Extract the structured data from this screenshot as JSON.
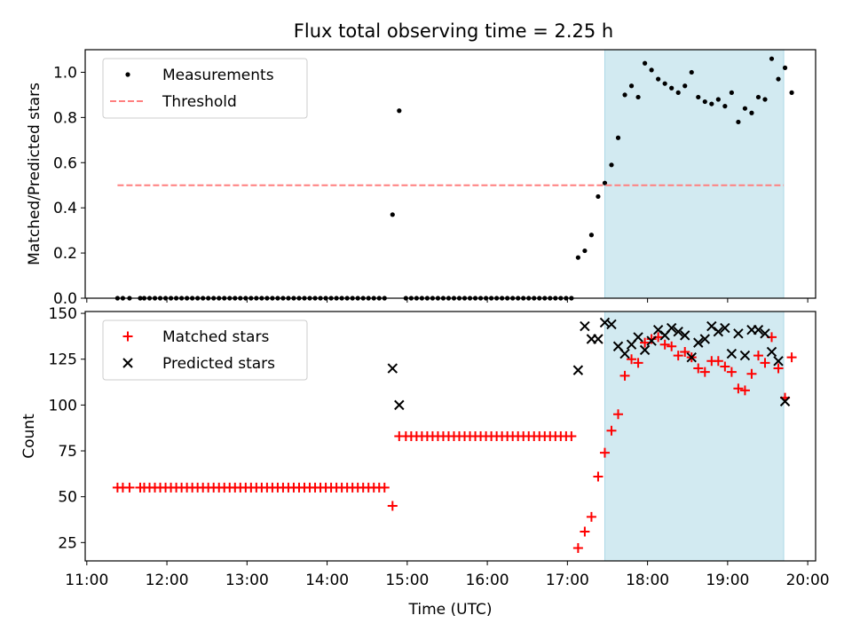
{
  "title": "Flux total observing time = 2.25 h",
  "colors": {
    "measurement": "#000000",
    "threshold": "#ff7f7f",
    "matched": "#ff0000",
    "predicted": "#000000",
    "highlight": "#add8e6"
  },
  "chart_data": [
    {
      "type": "scatter",
      "ylabel": "Matched/Predicted stars",
      "xlabel": "",
      "xlim": [
        "11:00",
        "20:00"
      ],
      "ylim": [
        0,
        1.1
      ],
      "yticks": [
        "0.0",
        "0.2",
        "0.4",
        "0.6",
        "0.8",
        "1.0"
      ],
      "legend_position": "top-left",
      "highlight_span": [
        "17:28",
        "19:42"
      ],
      "series": [
        {
          "name": "Measurements",
          "marker": "dot",
          "x": [
            "11:23",
            "11:27",
            "11:32",
            "11:40",
            "11:43",
            "11:47",
            "11:51",
            "11:55",
            "11:59",
            "12:03",
            "12:07",
            "12:11",
            "12:15",
            "12:19",
            "12:23",
            "12:27",
            "12:31",
            "12:35",
            "12:39",
            "12:43",
            "12:47",
            "12:51",
            "12:55",
            "12:59",
            "13:03",
            "13:07",
            "13:11",
            "13:15",
            "13:19",
            "13:23",
            "13:27",
            "13:31",
            "13:35",
            "13:39",
            "13:43",
            "13:47",
            "13:51",
            "13:55",
            "13:59",
            "14:03",
            "14:07",
            "14:11",
            "14:15",
            "14:19",
            "14:23",
            "14:27",
            "14:31",
            "14:35",
            "14:39",
            "14:43",
            "14:49",
            "14:54",
            "14:59",
            "15:03",
            "15:07",
            "15:11",
            "15:15",
            "15:19",
            "15:23",
            "15:27",
            "15:31",
            "15:35",
            "15:39",
            "15:43",
            "15:47",
            "15:51",
            "15:55",
            "15:59",
            "16:03",
            "16:07",
            "16:11",
            "16:15",
            "16:19",
            "16:23",
            "16:27",
            "16:31",
            "16:35",
            "16:39",
            "16:43",
            "16:47",
            "16:51",
            "16:55",
            "16:59",
            "17:03",
            "17:08",
            "17:13",
            "17:18",
            "17:23",
            "17:28",
            "17:33",
            "17:38",
            "17:43",
            "17:48",
            "17:53",
            "17:58",
            "18:03",
            "18:08",
            "18:13",
            "18:18",
            "18:23",
            "18:28",
            "18:33",
            "18:38",
            "18:43",
            "18:48",
            "18:53",
            "18:58",
            "19:03",
            "19:08",
            "19:13",
            "19:18",
            "19:23",
            "19:28",
            "19:33",
            "19:38",
            "19:43",
            "19:48"
          ],
          "y": [
            0,
            0,
            0,
            0,
            0,
            0,
            0,
            0,
            0,
            0,
            0,
            0,
            0,
            0,
            0,
            0,
            0,
            0,
            0,
            0,
            0,
            0,
            0,
            0,
            0,
            0,
            0,
            0,
            0,
            0,
            0,
            0,
            0,
            0,
            0,
            0,
            0,
            0,
            0,
            0,
            0,
            0,
            0,
            0,
            0,
            0,
            0,
            0,
            0,
            0,
            0.37,
            0.83,
            0,
            0,
            0,
            0,
            0,
            0,
            0,
            0,
            0,
            0,
            0,
            0,
            0,
            0,
            0,
            0,
            0,
            0,
            0,
            0,
            0,
            0,
            0,
            0,
            0,
            0,
            0,
            0,
            0,
            0,
            0,
            0,
            0.18,
            0.21,
            0.28,
            0.45,
            0.51,
            0.59,
            0.71,
            0.9,
            0.94,
            0.89,
            1.04,
            1.01,
            0.97,
            0.95,
            0.93,
            0.91,
            0.94,
            1.0,
            0.89,
            0.87,
            0.86,
            0.88,
            0.85,
            0.91,
            0.78,
            0.84,
            0.82,
            0.89,
            0.88,
            1.06,
            0.97,
            1.02,
            0.91
          ]
        },
        {
          "name": "Threshold",
          "style": "dashed",
          "x": [
            "11:23",
            "19:42"
          ],
          "y": [
            0.5,
            0.5
          ]
        }
      ]
    },
    {
      "type": "scatter",
      "ylabel": "Count",
      "xlabel": "Time (UTC)",
      "xlim": [
        "11:00",
        "20:00"
      ],
      "xticks": [
        "11:00",
        "12:00",
        "13:00",
        "14:00",
        "15:00",
        "16:00",
        "17:00",
        "18:00",
        "19:00",
        "20:00"
      ],
      "ylim": [
        15,
        151
      ],
      "yticks": [
        "25",
        "50",
        "75",
        "100",
        "125",
        "150"
      ],
      "legend_position": "top-left",
      "highlight_span": [
        "17:28",
        "19:42"
      ],
      "series": [
        {
          "name": "Matched stars",
          "marker": "plus",
          "x": [
            "11:23",
            "11:27",
            "11:32",
            "11:40",
            "11:43",
            "11:47",
            "11:51",
            "11:55",
            "11:59",
            "12:03",
            "12:07",
            "12:11",
            "12:15",
            "12:19",
            "12:23",
            "12:27",
            "12:31",
            "12:35",
            "12:39",
            "12:43",
            "12:47",
            "12:51",
            "12:55",
            "12:59",
            "13:03",
            "13:07",
            "13:11",
            "13:15",
            "13:19",
            "13:23",
            "13:27",
            "13:31",
            "13:35",
            "13:39",
            "13:43",
            "13:47",
            "13:51",
            "13:55",
            "13:59",
            "14:03",
            "14:07",
            "14:11",
            "14:15",
            "14:19",
            "14:23",
            "14:27",
            "14:31",
            "14:35",
            "14:39",
            "14:43",
            "14:49",
            "14:54",
            "14:59",
            "15:03",
            "15:07",
            "15:11",
            "15:15",
            "15:19",
            "15:23",
            "15:27",
            "15:31",
            "15:35",
            "15:39",
            "15:43",
            "15:47",
            "15:51",
            "15:55",
            "15:59",
            "16:03",
            "16:07",
            "16:11",
            "16:15",
            "16:19",
            "16:23",
            "16:27",
            "16:31",
            "16:35",
            "16:39",
            "16:43",
            "16:47",
            "16:51",
            "16:55",
            "16:59",
            "17:03",
            "17:08",
            "17:13",
            "17:18",
            "17:23",
            "17:28",
            "17:33",
            "17:38",
            "17:43",
            "17:48",
            "17:53",
            "17:58",
            "18:03",
            "18:08",
            "18:13",
            "18:18",
            "18:23",
            "18:28",
            "18:33",
            "18:38",
            "18:43",
            "18:48",
            "18:53",
            "18:58",
            "19:03",
            "19:08",
            "19:13",
            "19:18",
            "19:23",
            "19:28",
            "19:33",
            "19:38",
            "19:43",
            "19:48"
          ],
          "y": [
            55,
            55,
            55,
            55,
            55,
            55,
            55,
            55,
            55,
            55,
            55,
            55,
            55,
            55,
            55,
            55,
            55,
            55,
            55,
            55,
            55,
            55,
            55,
            55,
            55,
            55,
            55,
            55,
            55,
            55,
            55,
            55,
            55,
            55,
            55,
            55,
            55,
            55,
            55,
            55,
            55,
            55,
            55,
            55,
            55,
            55,
            55,
            55,
            55,
            55,
            45,
            83,
            83,
            83,
            83,
            83,
            83,
            83,
            83,
            83,
            83,
            83,
            83,
            83,
            83,
            83,
            83,
            83,
            83,
            83,
            83,
            83,
            83,
            83,
            83,
            83,
            83,
            83,
            83,
            83,
            83,
            83,
            83,
            83,
            22,
            31,
            39,
            61,
            74,
            86,
            95,
            116,
            125,
            123,
            134,
            136,
            137,
            133,
            132,
            127,
            129,
            126,
            120,
            118,
            124,
            124,
            121,
            118,
            109,
            108,
            117,
            127,
            123,
            137,
            120,
            104,
            126
          ]
        },
        {
          "name": "Predicted stars",
          "marker": "x",
          "x": [
            "14:49",
            "14:54",
            "17:08",
            "17:13",
            "17:18",
            "17:23",
            "17:28",
            "17:33",
            "17:38",
            "17:43",
            "17:48",
            "17:53",
            "17:58",
            "18:03",
            "18:08",
            "18:13",
            "18:18",
            "18:23",
            "18:28",
            "18:33",
            "18:38",
            "18:43",
            "18:48",
            "18:53",
            "18:58",
            "19:03",
            "19:08",
            "19:13",
            "19:18",
            "19:23",
            "19:28",
            "19:33",
            "19:38",
            "19:43"
          ],
          "y": [
            120,
            100,
            119,
            143,
            136,
            136,
            145,
            144,
            132,
            128,
            133,
            137,
            130,
            135,
            141,
            138,
            142,
            140,
            138,
            126,
            134,
            136,
            143,
            140,
            142,
            128,
            139,
            127,
            141,
            141,
            139,
            129,
            124,
            102
          ]
        }
      ]
    }
  ]
}
